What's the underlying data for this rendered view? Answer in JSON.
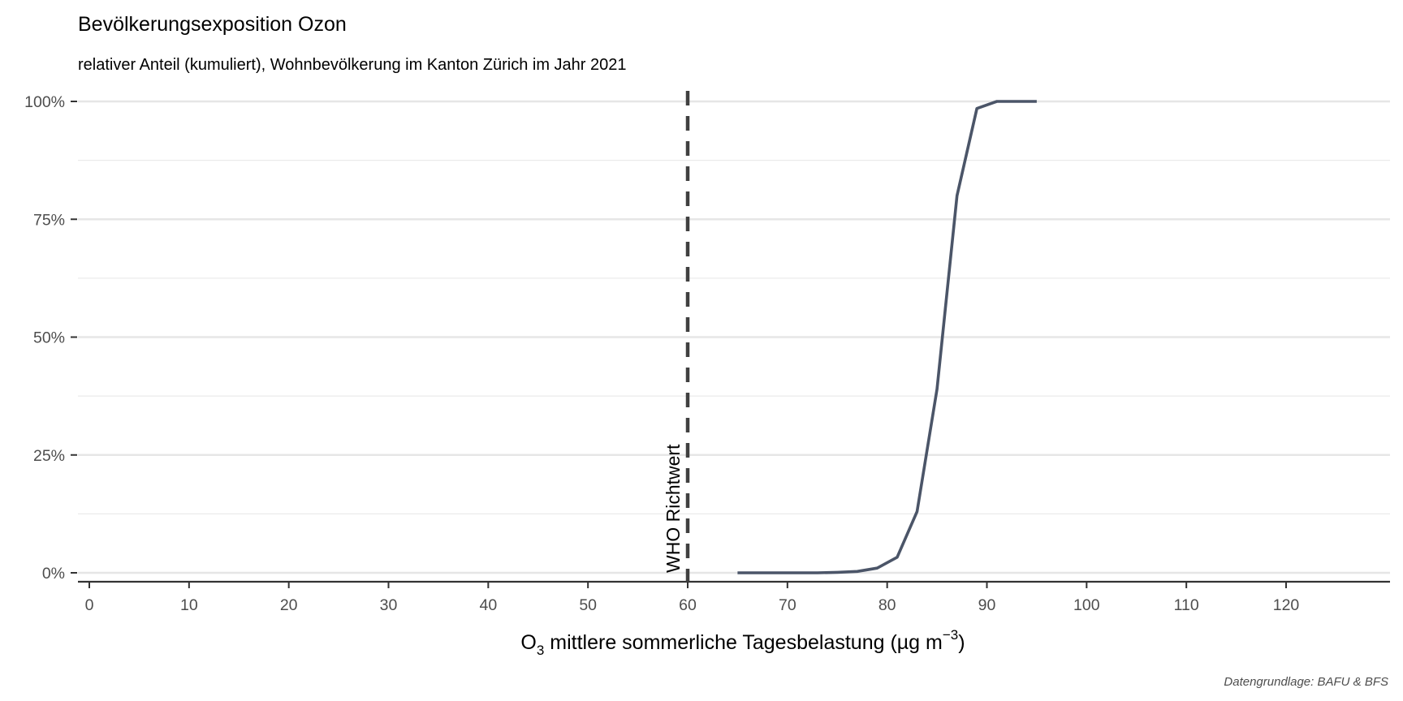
{
  "chart_data": {
    "type": "line",
    "title": "Bevölkerungsexposition Ozon",
    "subtitle": "relativer Anteil (kumuliert), Wohnbevölkerung im Kanton Zürich im Jahr 2021",
    "xlabel": {
      "main": "O",
      "subscript": "3",
      "rest": " mittlere sommerliche Tagesbelastung (µg m",
      "superscript": "−3",
      "close": ")"
    },
    "ylabel": "",
    "caption": "Datengrundlage: BAFU & BFS",
    "xlim": [
      0,
      120
    ],
    "ylim": [
      0,
      1
    ],
    "x_ticks": [
      0,
      10,
      20,
      30,
      40,
      50,
      60,
      70,
      80,
      90,
      100,
      110,
      120
    ],
    "x_tick_labels": [
      "0",
      "10",
      "20",
      "30",
      "40",
      "50",
      "60",
      "70",
      "80",
      "90",
      "100",
      "110",
      "120"
    ],
    "y_ticks": [
      0,
      0.25,
      0.5,
      0.75,
      1.0
    ],
    "y_tick_labels": [
      "0%",
      "25%",
      "50%",
      "75%",
      "100%"
    ],
    "grid": true,
    "legend": "none",
    "line_color": "#4b5568",
    "reference_line": {
      "x": 60,
      "label": "WHO Richtwert",
      "style": "dashed",
      "color": "#404040"
    },
    "series": [
      {
        "x": [
          65,
          67,
          69,
          71,
          73,
          75,
          77,
          79,
          81,
          83,
          85,
          87,
          89,
          91,
          93,
          95
        ],
        "values": [
          0,
          0,
          0,
          0,
          0,
          0.001,
          0.003,
          0.01,
          0.033,
          0.13,
          0.39,
          0.8,
          0.985,
          1.0,
          1.0,
          1.0
        ]
      }
    ]
  }
}
